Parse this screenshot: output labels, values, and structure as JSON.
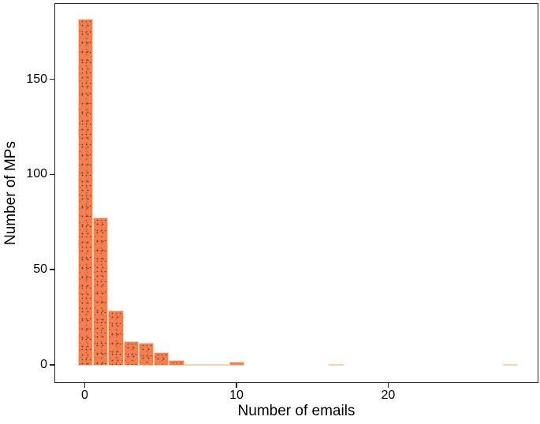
{
  "chart_data": {
    "type": "bar",
    "subtype": "histogram",
    "title": "",
    "xlabel": "Number of emails",
    "ylabel": "Number of MPs",
    "x_ticks": [
      0,
      10,
      20
    ],
    "y_ticks": [
      0,
      50,
      100,
      150
    ],
    "xlim": [
      -2,
      29.9
    ],
    "ylim": [
      -9.5,
      190
    ],
    "grid": false,
    "legend": "none",
    "bin_width": 1,
    "bar_fill_color": "#f87e4f",
    "bar_outline_color": "#fcd0ab",
    "panel_border_color": "#262626",
    "bars": [
      {
        "x": 0,
        "count": 182
      },
      {
        "x": 1,
        "count": 78
      },
      {
        "x": 2,
        "count": 29
      },
      {
        "x": 3,
        "count": 13
      },
      {
        "x": 4,
        "count": 12
      },
      {
        "x": 5,
        "count": 7
      },
      {
        "x": 6,
        "count": 3
      },
      {
        "x": 7,
        "count": 1
      },
      {
        "x": 8,
        "count": 1
      },
      {
        "x": 9,
        "count": 1
      },
      {
        "x": 10,
        "count": 2
      },
      {
        "x": 16.5,
        "count": 1
      },
      {
        "x": 28,
        "count": 1
      }
    ]
  }
}
